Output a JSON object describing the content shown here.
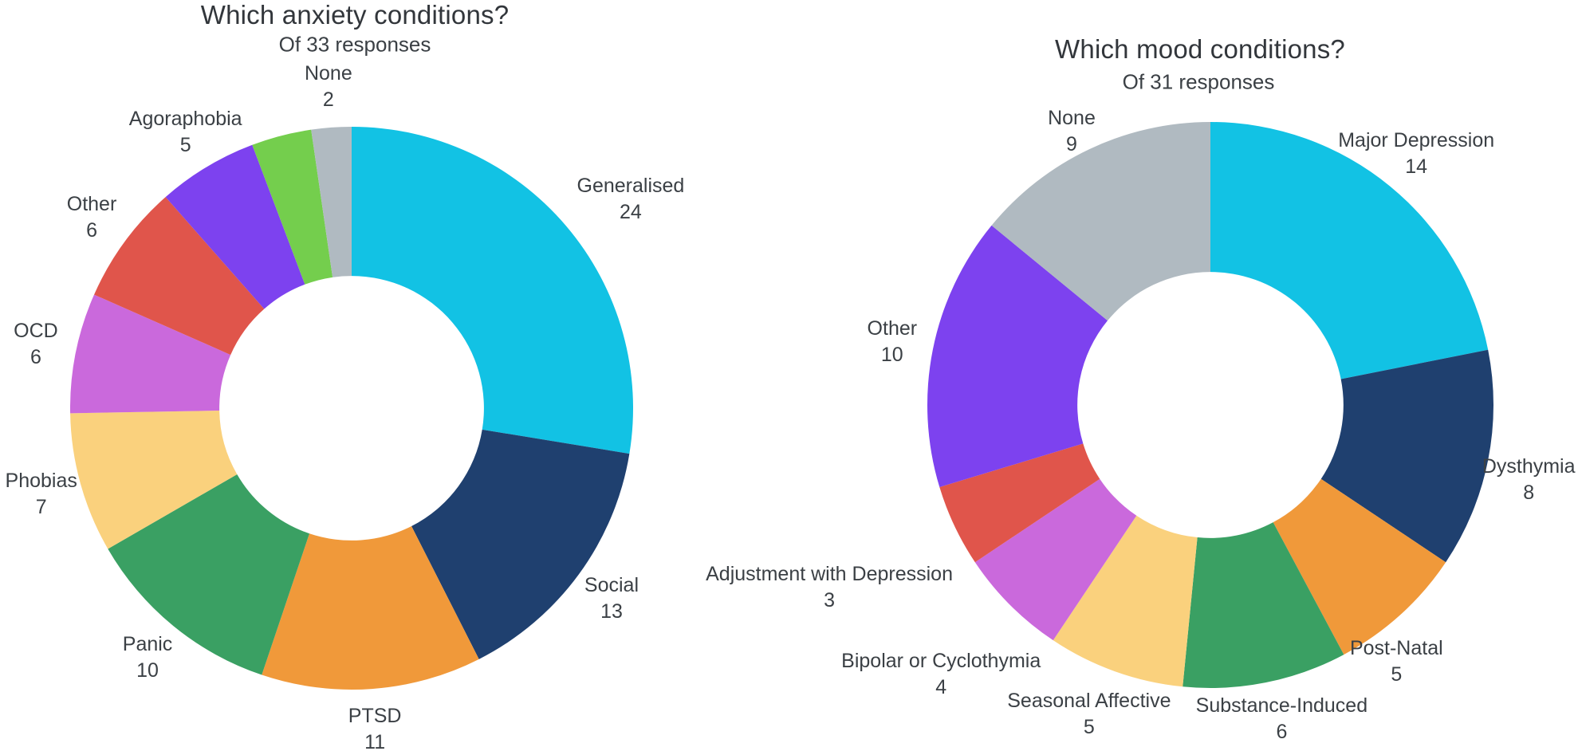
{
  "chart_data": [
    {
      "type": "pie",
      "variant": "donut",
      "hole": 0.47,
      "title": "Which anxiety conditions?",
      "subtitle": "Of 33 responses",
      "total_responses": 33,
      "legend_position": "none",
      "labels_position": "outside",
      "start_angle_deg": 0,
      "direction": "clockwise",
      "slices": [
        {
          "label": "Generalised",
          "value": 24,
          "color": "#12C2E4"
        },
        {
          "label": "Social",
          "value": 13,
          "color": "#1F406F"
        },
        {
          "label": "PTSD",
          "value": 11,
          "color": "#F0993A"
        },
        {
          "label": "Panic",
          "value": 10,
          "color": "#3AA063"
        },
        {
          "label": "Phobias",
          "value": 7,
          "color": "#FAD17D"
        },
        {
          "label": "OCD",
          "value": 6,
          "color": "#CA69DC"
        },
        {
          "label": "Other",
          "value": 6,
          "color": "#E0554B"
        },
        {
          "label": "Agoraphobia",
          "value": 5,
          "color": "#7D42EF"
        },
        {
          "label": "",
          "value": 3,
          "color": "#74CE4D"
        },
        {
          "label": "None",
          "value": 2,
          "color": "#B0BAC1"
        }
      ]
    },
    {
      "type": "pie",
      "variant": "donut",
      "hole": 0.47,
      "title": "Which mood conditions?",
      "subtitle": "Of 31 responses",
      "total_responses": 31,
      "legend_position": "none",
      "labels_position": "outside",
      "start_angle_deg": 0,
      "direction": "clockwise",
      "slices": [
        {
          "label": "Major Depression",
          "value": 14,
          "color": "#12C2E4"
        },
        {
          "label": "Dysthymia",
          "value": 8,
          "color": "#1F406F"
        },
        {
          "label": "Post-Natal",
          "value": 5,
          "color": "#F0993A"
        },
        {
          "label": "Substance-Induced",
          "value": 6,
          "color": "#3AA063"
        },
        {
          "label": "Seasonal Affective",
          "value": 5,
          "color": "#FAD17D"
        },
        {
          "label": "Bipolar or Cyclothymia",
          "value": 4,
          "color": "#CA69DC"
        },
        {
          "label": "Adjustment with Depression",
          "value": 3,
          "color": "#E0554B"
        },
        {
          "label": "Other",
          "value": 10,
          "color": "#7D42EF"
        },
        {
          "label": "None",
          "value": 9,
          "color": "#B0BAC1"
        }
      ]
    }
  ]
}
